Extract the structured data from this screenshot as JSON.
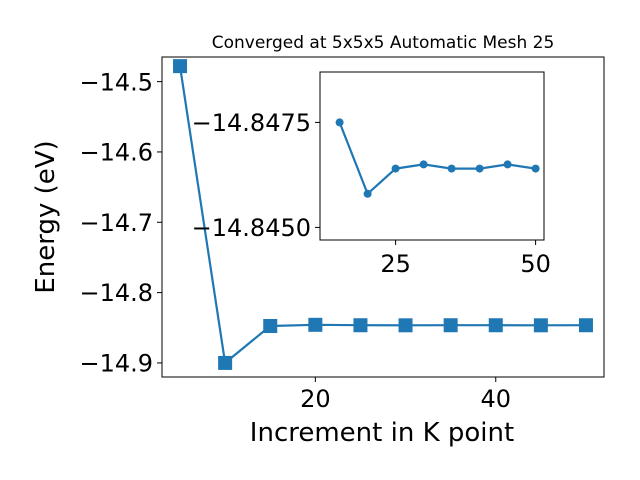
{
  "chart_data": {
    "type": "line",
    "title": "Converged at 5x5x5 Automatic Mesh 25",
    "xlabel": "Increment in K point",
    "ylabel": "Energy (eV)",
    "xlim": [
      3,
      52
    ],
    "ylim": [
      -14.92,
      -14.465
    ],
    "xticks": [
      20,
      40
    ],
    "yticks": [
      -14.5,
      -14.6,
      -14.7,
      -14.8,
      -14.9
    ],
    "xtick_labels": [
      "20",
      "40"
    ],
    "ytick_labels": [
      "−14.5",
      "−14.6",
      "−14.7",
      "−14.8",
      "−14.9"
    ],
    "grid": false,
    "series": [
      {
        "color": "#1f77b4",
        "marker": "square",
        "x": [
          5,
          10,
          15,
          20,
          25,
          30,
          35,
          40,
          45,
          50
        ],
        "y": [
          -14.478,
          -14.9,
          -14.8475,
          -14.8458,
          -14.8464,
          -14.8465,
          -14.8464,
          -14.8464,
          -14.8465,
          -14.8464
        ]
      }
    ],
    "inset": {
      "type": "line",
      "xlim": [
        11.5,
        51.5
      ],
      "ylim": [
        -14.8447,
        -14.8487
      ],
      "xticks": [
        25,
        50
      ],
      "yticks": [
        -14.8475,
        -14.845
      ],
      "xtick_labels": [
        "25",
        "50"
      ],
      "ytick_labels": [
        "−14.8475",
        "−14.8450"
      ],
      "series": [
        {
          "color": "#1f77b4",
          "marker": "circle",
          "x": [
            15,
            20,
            25,
            30,
            35,
            40,
            45,
            50
          ],
          "y": [
            -14.8475,
            -14.8458,
            -14.8464,
            -14.8465,
            -14.8464,
            -14.8464,
            -14.8465,
            -14.8464
          ]
        }
      ]
    }
  }
}
